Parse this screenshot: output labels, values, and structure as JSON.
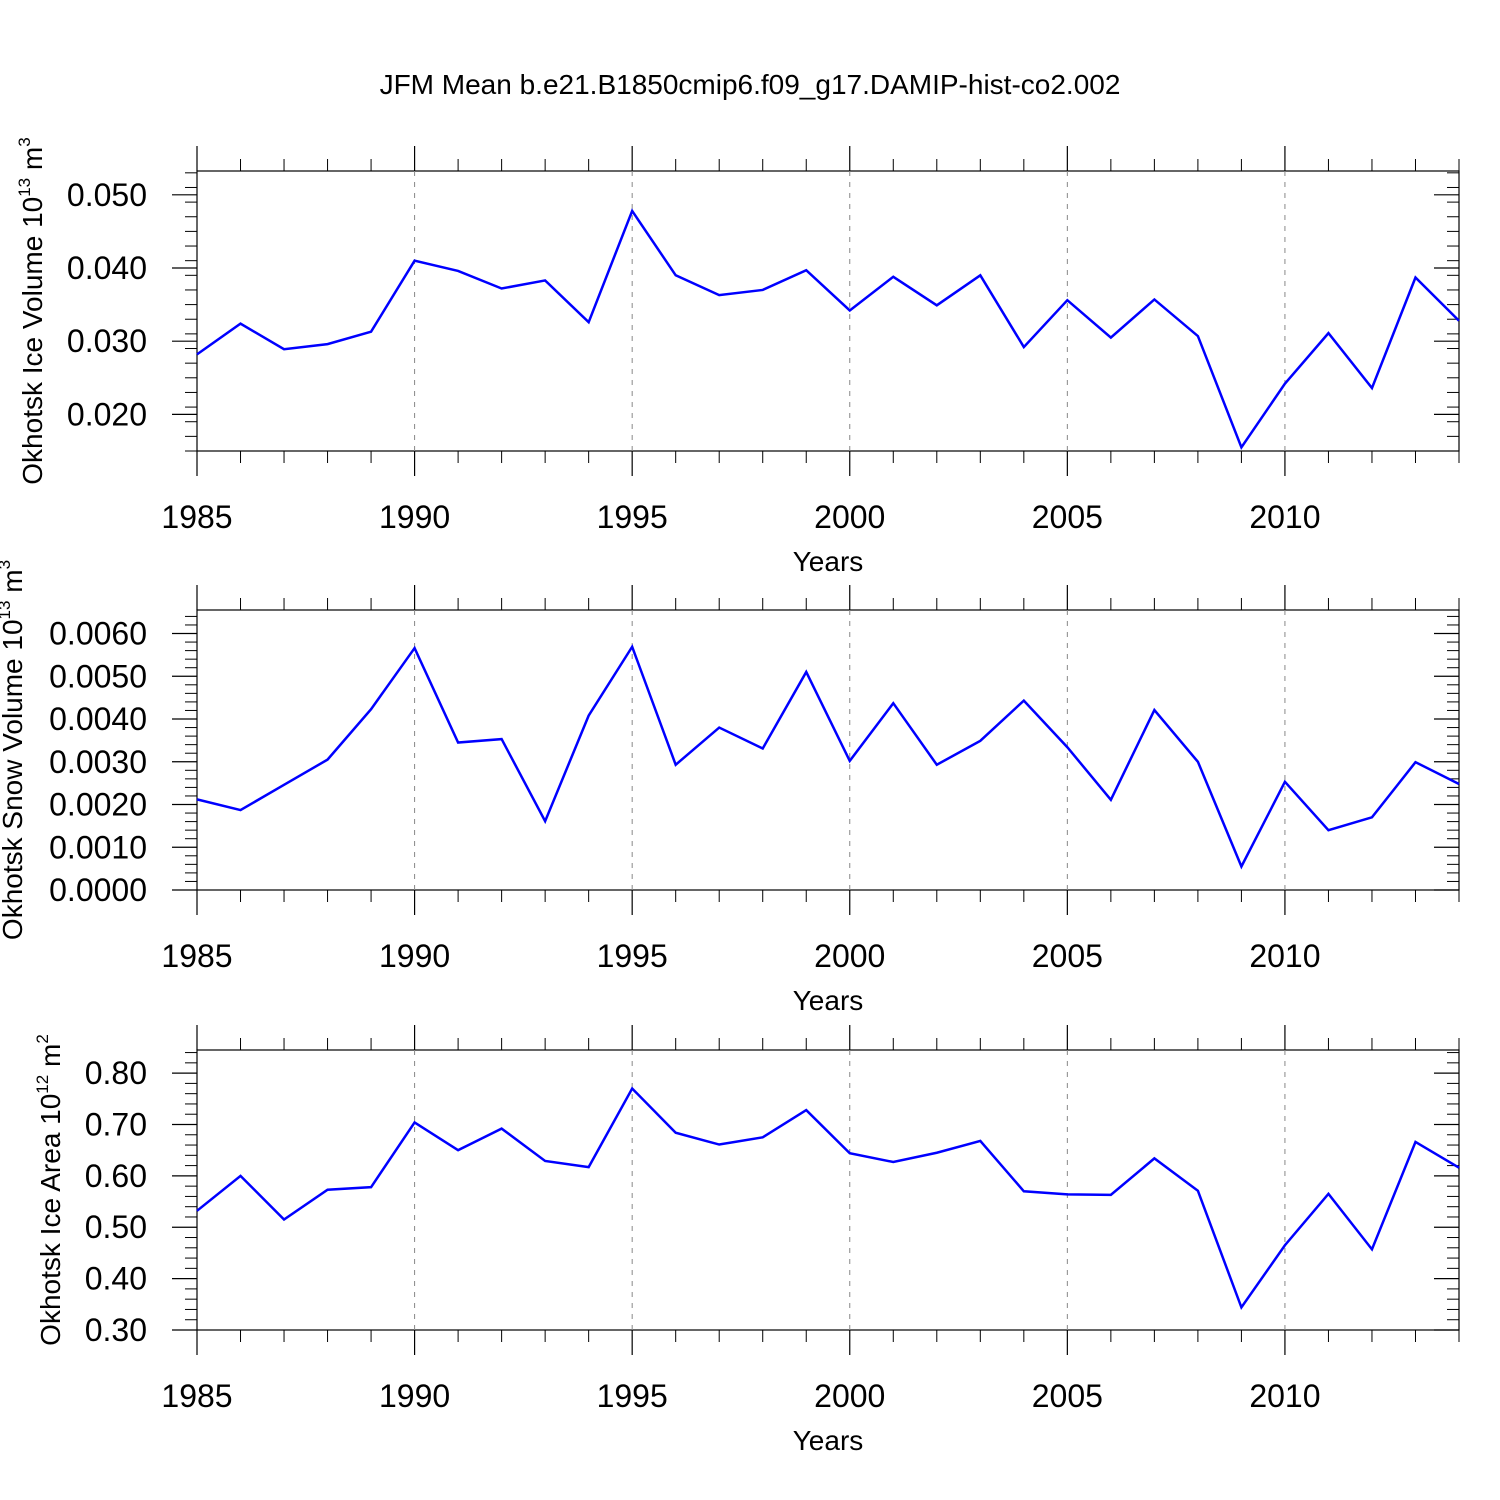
{
  "figure_title": "JFM Mean b.e21.B1850cmip6.f09_g17.DAMIP-hist-co2.002",
  "line_color": "#0000ff",
  "chart_data": [
    {
      "type": "line",
      "title": "JFM Mean b.e21.B1850cmip6.f09_g17.DAMIP-hist-co2.002",
      "ylabel": "Okhotsk Ice Volume 10",
      "ylabel_exp": "13",
      "ylabel_unit": " m",
      "ylabel_unit_exp": "3",
      "xlabel": "Years",
      "xlim": [
        1985,
        2014
      ],
      "ylim": [
        0.015,
        0.05325
      ],
      "x_ticks": [
        1985,
        1990,
        1995,
        2000,
        2005,
        2010
      ],
      "x_tick_labels": [
        "1985",
        "1990",
        "1995",
        "2000",
        "2005",
        "2010"
      ],
      "y_ticks": [
        0.02,
        0.03,
        0.04,
        0.05
      ],
      "y_tick_labels": [
        "0.020",
        "0.030",
        "0.040",
        "0.050"
      ],
      "y_minor_step": 0.002,
      "x": [
        1985,
        1986,
        1987,
        1988,
        1989,
        1990,
        1991,
        1992,
        1993,
        1994,
        1995,
        1996,
        1997,
        1998,
        1999,
        2000,
        2001,
        2002,
        2003,
        2004,
        2005,
        2006,
        2007,
        2008,
        2009,
        2010,
        2011,
        2012,
        2013,
        2014
      ],
      "series": [
        {
          "name": "Okhotsk Ice Volume",
          "values": [
            0.0282,
            0.0324,
            0.0289,
            0.0296,
            0.0313,
            0.041,
            0.0396,
            0.0372,
            0.0383,
            0.0326,
            0.0478,
            0.039,
            0.0363,
            0.037,
            0.0397,
            0.0342,
            0.0388,
            0.0349,
            0.039,
            0.0292,
            0.0356,
            0.0305,
            0.0357,
            0.0307,
            0.0155,
            0.0242,
            0.0311,
            0.0236,
            0.0387,
            0.0328
          ]
        }
      ]
    },
    {
      "type": "line",
      "ylabel": "Okhotsk Snow Volume 10",
      "ylabel_exp": "13",
      "ylabel_unit": " m",
      "ylabel_unit_exp": "3",
      "xlabel": "Years",
      "xlim": [
        1985,
        2014
      ],
      "ylim": [
        0.0,
        0.00655
      ],
      "x_ticks": [
        1985,
        1990,
        1995,
        2000,
        2005,
        2010
      ],
      "x_tick_labels": [
        "1985",
        "1990",
        "1995",
        "2000",
        "2005",
        "2010"
      ],
      "y_ticks": [
        0.0,
        0.001,
        0.002,
        0.003,
        0.004,
        0.005,
        0.006
      ],
      "y_tick_labels": [
        "0.0000",
        "0.0010",
        "0.0020",
        "0.0030",
        "0.0040",
        "0.0050",
        "0.0060"
      ],
      "y_minor_step": 0.0002,
      "x": [
        1985,
        1986,
        1987,
        1988,
        1989,
        1990,
        1991,
        1992,
        1993,
        1994,
        1995,
        1996,
        1997,
        1998,
        1999,
        2000,
        2001,
        2002,
        2003,
        2004,
        2005,
        2006,
        2007,
        2008,
        2009,
        2010,
        2011,
        2012,
        2013,
        2014
      ],
      "series": [
        {
          "name": "Okhotsk Snow Volume",
          "values": [
            0.00212,
            0.00187,
            0.00246,
            0.00305,
            0.00423,
            0.00566,
            0.00345,
            0.00353,
            0.00161,
            0.00408,
            0.00569,
            0.00293,
            0.0038,
            0.00331,
            0.0051,
            0.00302,
            0.00437,
            0.00293,
            0.00349,
            0.00443,
            0.00334,
            0.00211,
            0.00421,
            0.003,
            0.00055,
            0.00253,
            0.0014,
            0.0017,
            0.00299,
            0.00248
          ]
        }
      ]
    },
    {
      "type": "line",
      "ylabel": "Okhotsk Ice Area 10",
      "ylabel_exp": "12",
      "ylabel_unit": " m",
      "ylabel_unit_exp": "2",
      "xlabel": "Years",
      "xlim": [
        1985,
        2014
      ],
      "ylim": [
        0.3,
        0.845
      ],
      "x_ticks": [
        1985,
        1990,
        1995,
        2000,
        2005,
        2010
      ],
      "x_tick_labels": [
        "1985",
        "1990",
        "1995",
        "2000",
        "2005",
        "2010"
      ],
      "y_ticks": [
        0.3,
        0.4,
        0.5,
        0.6,
        0.7,
        0.8
      ],
      "y_tick_labels": [
        "0.30",
        "0.40",
        "0.50",
        "0.60",
        "0.70",
        "0.80"
      ],
      "y_minor_step": 0.02,
      "x": [
        1985,
        1986,
        1987,
        1988,
        1989,
        1990,
        1991,
        1992,
        1993,
        1994,
        1995,
        1996,
        1997,
        1998,
        1999,
        2000,
        2001,
        2002,
        2003,
        2004,
        2005,
        2006,
        2007,
        2008,
        2009,
        2010,
        2011,
        2012,
        2013,
        2014
      ],
      "series": [
        {
          "name": "Okhotsk Ice Area",
          "values": [
            0.532,
            0.6,
            0.515,
            0.573,
            0.578,
            0.704,
            0.65,
            0.692,
            0.629,
            0.617,
            0.77,
            0.684,
            0.661,
            0.675,
            0.728,
            0.644,
            0.627,
            0.645,
            0.668,
            0.57,
            0.564,
            0.563,
            0.634,
            0.571,
            0.344,
            0.465,
            0.565,
            0.457,
            0.666,
            0.616
          ]
        }
      ]
    }
  ]
}
